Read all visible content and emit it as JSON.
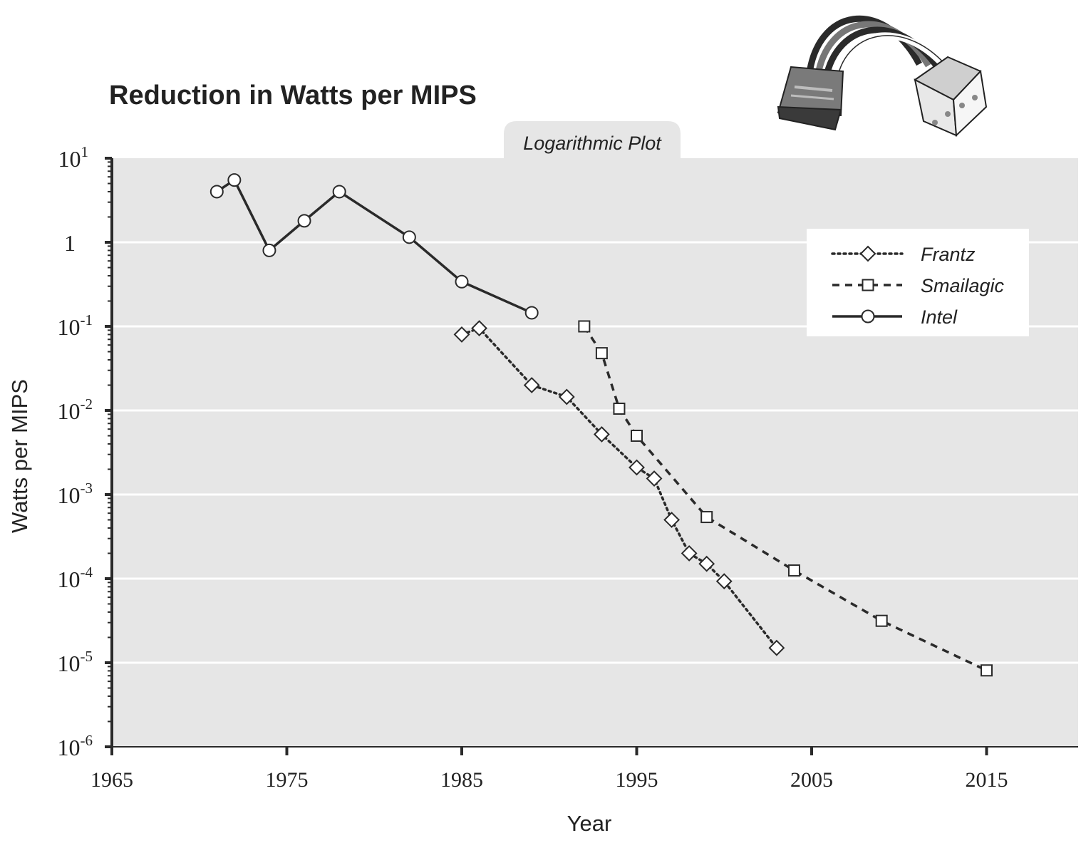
{
  "chart_data": {
    "type": "line",
    "title": "Reduction in Watts per MIPS",
    "subtitle": "Logarithmic Plot",
    "xlabel": "Year",
    "ylabel": "Watts per MIPS",
    "xlim": [
      1965,
      2020
    ],
    "ylim": [
      1e-06,
      10
    ],
    "yscale": "log",
    "x_ticks": [
      {
        "value": 1965,
        "label": "1965"
      },
      {
        "value": 1975,
        "label": "1975"
      },
      {
        "value": 1985,
        "label": "1985"
      },
      {
        "value": 1995,
        "label": "1995"
      },
      {
        "value": 2005,
        "label": "2005"
      },
      {
        "value": 2015,
        "label": "2015"
      }
    ],
    "y_ticks": [
      {
        "value": 10,
        "base": "10",
        "exp": "1"
      },
      {
        "value": 1,
        "base": "1",
        "exp": ""
      },
      {
        "value": 0.1,
        "base": "10",
        "exp": "-1"
      },
      {
        "value": 0.01,
        "base": "10",
        "exp": "-2"
      },
      {
        "value": 0.001,
        "base": "10",
        "exp": "-3"
      },
      {
        "value": 0.0001,
        "base": "10",
        "exp": "-4"
      },
      {
        "value": 1e-05,
        "base": "10",
        "exp": "-5"
      },
      {
        "value": 1e-06,
        "base": "10",
        "exp": "-6"
      }
    ],
    "grid": true,
    "legend_position": "top-right",
    "series": [
      {
        "name": "Frantz",
        "style": "dotted",
        "marker": "diamond",
        "x": [
          1985.0,
          1986.0,
          1989.0,
          1991.0,
          1993.0,
          1995.0,
          1996.0,
          1997.0,
          1998.0,
          1999.0,
          2000.0,
          2003.0
        ],
        "y": [
          0.08,
          0.095,
          0.02,
          0.0145,
          0.0052,
          0.0021,
          0.00155,
          0.0005,
          0.0002,
          0.00015,
          9.3e-05,
          1.5e-05
        ]
      },
      {
        "name": "Smailagic",
        "style": "dashed",
        "marker": "square",
        "x": [
          1992.0,
          1993.0,
          1994.0,
          1995.0,
          1999.0,
          2004.0,
          2009.0,
          2015.0
        ],
        "y": [
          0.1,
          0.048,
          0.0105,
          0.005,
          0.00054,
          0.000125,
          3.15e-05,
          8.1e-06
        ]
      },
      {
        "name": "Intel",
        "style": "solid",
        "marker": "circle",
        "x": [
          1971.0,
          1972.0,
          1974.0,
          1976.0,
          1978.0,
          1982.0,
          1985.0,
          1989.0
        ],
        "y": [
          4.0,
          5.5,
          0.8,
          1.8,
          4.0,
          1.15,
          0.34,
          0.145
        ]
      }
    ]
  },
  "illustration": {
    "name": "power-connector-cable-image"
  },
  "colors": {
    "plot_bg": "#e6e6e6",
    "line": "#2a2a2a",
    "text": "#222222",
    "grid": "#ffffff"
  }
}
